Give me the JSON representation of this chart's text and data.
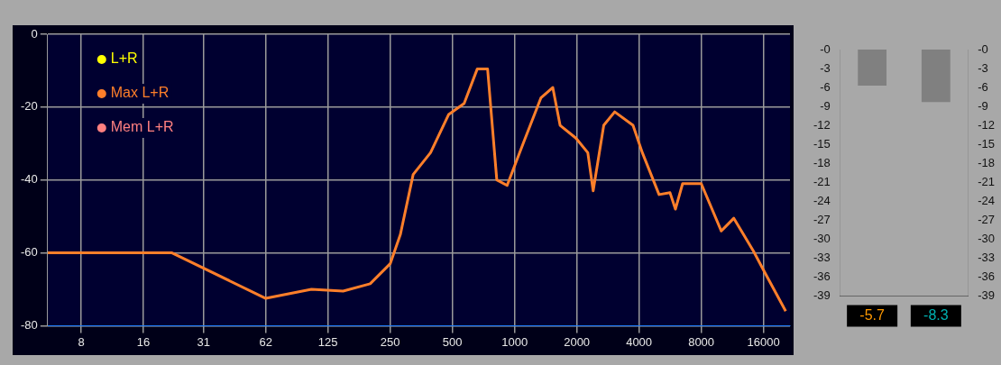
{
  "chart_data": [
    {
      "type": "line",
      "legend": "top left",
      "grid": true,
      "marker": "none",
      "line_style": "solid",
      "log": "x",
      "xlim": [
        5.5,
        21500
      ],
      "xticks": [
        8,
        16,
        {
          "value": 31.25,
          "label": "31"
        },
        {
          "value": 62.5,
          "label": "62"
        },
        125,
        250,
        500,
        1000,
        2000,
        4000,
        8000,
        16000
      ],
      "ylim": [
        -80,
        0
      ],
      "yticks": [
        -80,
        -60,
        -40,
        -20,
        0
      ],
      "x": [
        5.5,
        22,
        62.5,
        104,
        148,
        200,
        250,
        280,
        323,
        392,
        480,
        570,
        660,
        740,
        820,
        920,
        1100,
        1340,
        1530,
        1660,
        1980,
        2260,
        2400,
        2700,
        3050,
        3740,
        4150,
        5000,
        5650,
        6000,
        6500,
        8000,
        10000,
        11500,
        14300,
        16100,
        20500
      ],
      "series": [
        {
          "name": "L+R",
          "color": "#ffff00",
          "values": [
            null,
            null,
            null,
            null,
            null,
            null,
            null,
            null,
            null,
            null,
            null,
            null,
            null,
            null,
            null,
            null,
            null,
            null,
            null,
            null,
            null,
            null,
            null,
            null,
            null,
            null,
            null,
            null,
            null,
            null,
            null,
            null,
            null,
            null,
            null,
            null,
            null
          ]
        },
        {
          "name": "Max L+R",
          "color": "#ff7f2a",
          "values": [
            -60,
            -60,
            -72.5,
            -70,
            -70.5,
            -68.5,
            -63,
            -55,
            -38.5,
            -32.5,
            -22,
            -19,
            -9.5,
            -9.5,
            -40,
            -41.5,
            -30,
            -17.5,
            -14.6,
            -25,
            -28.5,
            -32.5,
            -43,
            -25,
            -21.3,
            -25,
            -32.5,
            -44,
            -43.5,
            -48,
            -41,
            -41,
            -54,
            -50.5,
            -59.5,
            -65,
            -76
          ]
        },
        {
          "name": "Mem L+R",
          "color": "#ff8080",
          "values": [
            null,
            null,
            null,
            null,
            null,
            null,
            null,
            null,
            null,
            null,
            null,
            null,
            null,
            null,
            null,
            null,
            null,
            null,
            null,
            null,
            null,
            null,
            null,
            null,
            null,
            null,
            null,
            null,
            null,
            null,
            null,
            null,
            null,
            null,
            null,
            null,
            null
          ]
        }
      ]
    },
    {
      "type": "bar",
      "categories": [
        null,
        null
      ],
      "values": [
        -5.7,
        -8.3
      ],
      "value_labels": [
        "-5.7",
        "-8.3"
      ],
      "color": "#808080",
      "ylim": [
        -39,
        0
      ],
      "yticks": [
        {
          "value": 0,
          "label": "-0"
        },
        -3,
        -6,
        -9,
        -12,
        -15,
        -18,
        -21,
        -24,
        -27,
        -30,
        -33,
        -36,
        -39
      ],
      "y2lim": [
        -39,
        0
      ],
      "y2ticks": [
        {
          "value": 0,
          "label": "-0"
        },
        -3,
        -6,
        -9,
        -12,
        -15,
        -18,
        -21,
        -24,
        -27,
        -30,
        -33,
        -36,
        -39
      ],
      "grid": false
    }
  ]
}
